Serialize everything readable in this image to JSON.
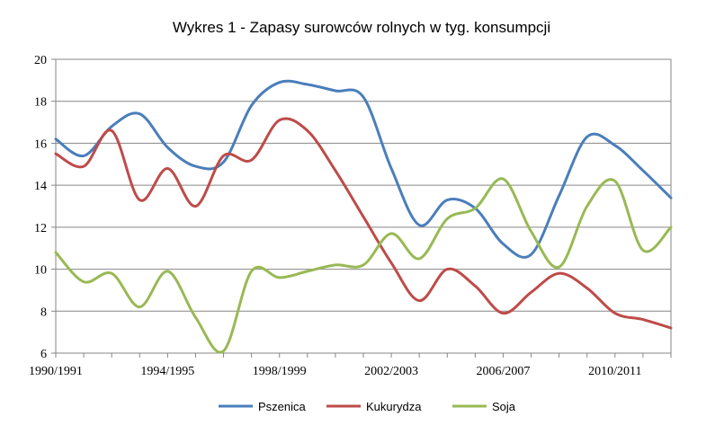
{
  "chart_data": {
    "type": "line",
    "title": "Wykres 1 - Zapasy surowców rolnych w tyg. konsumpcji",
    "xlabel": "",
    "ylabel": "",
    "ylim": [
      6,
      20
    ],
    "yticks": [
      6,
      8,
      10,
      12,
      14,
      16,
      18,
      20
    ],
    "grid": true,
    "legend_position": "bottom",
    "categories": [
      "1990/1991",
      "1991/1992",
      "1992/1993",
      "1993/1994",
      "1994/1995",
      "1995/1996",
      "1996/1997",
      "1997/1998",
      "1998/1999",
      "1999/2000",
      "2000/2001",
      "2001/2002",
      "2002/2003",
      "2003/2004",
      "2004/2005",
      "2005/2006",
      "2006/2007",
      "2007/2008",
      "2008/2009",
      "2009/2010",
      "2010/2011",
      "2011/2012",
      "2012/2013"
    ],
    "x_tick_labels": [
      "1990/1991",
      "1994/1995",
      "1998/1999",
      "2002/2003",
      "2006/2007",
      "2010/2011"
    ],
    "series": [
      {
        "name": "Pszenica",
        "color": "#4A7EBB",
        "values": [
          16.2,
          15.4,
          16.8,
          17.4,
          15.8,
          14.9,
          15.1,
          17.8,
          18.9,
          18.8,
          18.5,
          18.2,
          14.8,
          12.1,
          13.3,
          12.9,
          11.2,
          10.7,
          13.5,
          16.3,
          15.9,
          14.7,
          13.4
        ]
      },
      {
        "name": "Kukurydza",
        "color": "#BE4B48",
        "values": [
          15.5,
          14.9,
          16.6,
          13.3,
          14.8,
          13.0,
          15.4,
          15.2,
          17.1,
          16.6,
          14.7,
          12.5,
          10.3,
          8.5,
          10.0,
          9.2,
          7.9,
          8.9,
          9.8,
          9.1,
          7.9,
          7.6,
          7.2
        ]
      },
      {
        "name": "Soja",
        "color": "#98B954",
        "values": [
          10.8,
          9.4,
          9.8,
          8.2,
          9.9,
          7.7,
          6.1,
          9.9,
          9.6,
          9.9,
          10.2,
          10.2,
          11.7,
          10.5,
          12.4,
          12.9,
          14.3,
          11.8,
          10.1,
          13.0,
          14.2,
          10.9,
          12.0
        ]
      }
    ]
  }
}
